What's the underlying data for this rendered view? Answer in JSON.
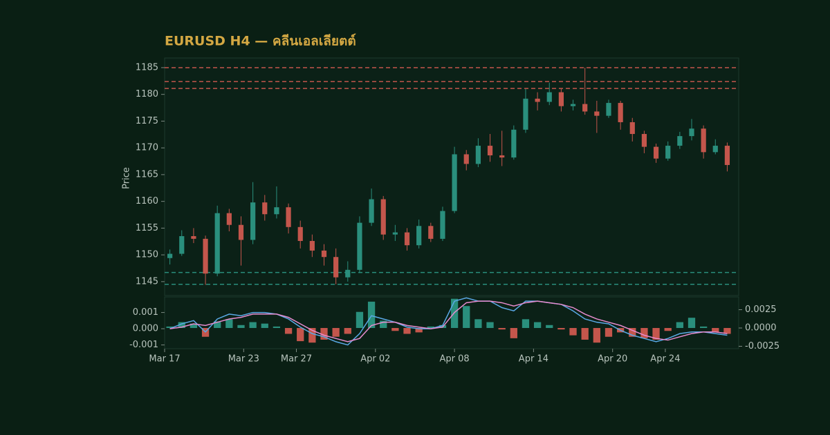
{
  "chart_data": [
    {
      "type": "candlestick",
      "title": "EURUSD H4 — คลีนเอลเลียตต์",
      "ylabel": "Price",
      "up_color": "#2a8f7d",
      "down_color": "#c4564c",
      "x": [
        0.4,
        1.3,
        2.2,
        3.1,
        4.0,
        4.9,
        5.8,
        6.7,
        7.6,
        8.5,
        9.4,
        10.3,
        11.2,
        12.1,
        13.0,
        13.9,
        14.8,
        15.7,
        16.6,
        17.5,
        18.4,
        19.3,
        20.2,
        21.1,
        22.0,
        22.9,
        23.8,
        24.7,
        25.6,
        26.5,
        27.4,
        28.3,
        29.2,
        30.1,
        31.0,
        31.9,
        32.8,
        33.7,
        34.6,
        35.5,
        36.4,
        37.3,
        38.2,
        39.1,
        40.0,
        40.9,
        41.8,
        42.7
      ],
      "open": [
        1149.4,
        1150.2,
        1153.5,
        1153.0,
        1146.5,
        1157.8,
        1155.6,
        1152.8,
        1159.8,
        1157.6,
        1158.9,
        1155.2,
        1152.6,
        1150.8,
        1149.6,
        1145.8,
        1147.2,
        1156.0,
        1160.4,
        1153.8,
        1154.2,
        1151.8,
        1155.4,
        1153.0,
        1158.2,
        1168.8,
        1167.0,
        1170.4,
        1168.6,
        1168.2,
        1173.4,
        1179.2,
        1178.6,
        1180.4,
        1177.8,
        1178.2,
        1176.8,
        1176.0,
        1178.4,
        1174.8,
        1172.6,
        1170.2,
        1168.0,
        1170.4,
        1172.2,
        1173.6,
        1169.2,
        1170.4
      ],
      "high": [
        1151.0,
        1154.6,
        1155.0,
        1153.6,
        1159.2,
        1158.6,
        1157.2,
        1163.6,
        1161.2,
        1162.8,
        1159.6,
        1156.4,
        1153.8,
        1152.0,
        1151.2,
        1148.8,
        1157.2,
        1162.4,
        1161.0,
        1155.6,
        1155.0,
        1156.6,
        1156.0,
        1159.0,
        1170.2,
        1169.6,
        1171.8,
        1172.6,
        1173.2,
        1174.2,
        1181.0,
        1180.4,
        1182.2,
        1181.0,
        1179.0,
        1185.0,
        1178.8,
        1179.0,
        1178.8,
        1175.6,
        1173.2,
        1170.8,
        1171.2,
        1173.0,
        1175.4,
        1174.2,
        1171.6,
        1171.0
      ],
      "low": [
        1148.2,
        1149.8,
        1152.2,
        1144.4,
        1146.0,
        1154.4,
        1148.0,
        1152.0,
        1156.4,
        1156.8,
        1154.0,
        1151.2,
        1149.6,
        1148.0,
        1144.5,
        1145.0,
        1146.6,
        1155.4,
        1152.8,
        1152.6,
        1150.8,
        1151.2,
        1152.4,
        1152.6,
        1157.8,
        1165.8,
        1166.4,
        1167.4,
        1166.6,
        1167.8,
        1172.8,
        1177.0,
        1178.0,
        1176.8,
        1177.0,
        1176.2,
        1172.8,
        1175.6,
        1173.4,
        1171.2,
        1169.0,
        1167.2,
        1167.6,
        1169.8,
        1171.4,
        1168.0,
        1168.8,
        1165.6
      ],
      "close": [
        1150.2,
        1153.5,
        1153.0,
        1146.5,
        1157.8,
        1155.6,
        1152.8,
        1159.8,
        1157.6,
        1158.9,
        1155.2,
        1152.6,
        1150.8,
        1149.6,
        1145.8,
        1147.2,
        1156.0,
        1160.4,
        1153.8,
        1154.2,
        1151.8,
        1155.4,
        1153.0,
        1158.2,
        1168.8,
        1167.0,
        1170.4,
        1168.6,
        1168.2,
        1173.4,
        1179.2,
        1178.6,
        1180.4,
        1177.8,
        1178.2,
        1176.8,
        1176.0,
        1178.4,
        1174.8,
        1172.6,
        1170.2,
        1168.0,
        1170.4,
        1172.2,
        1173.6,
        1169.2,
        1170.4,
        1166.8
      ],
      "levels": [
        {
          "value": 1185.0,
          "color": "#c4564c"
        },
        {
          "value": 1182.4,
          "color": "#c4564c"
        },
        {
          "value": 1181.1,
          "color": "#c4564c"
        },
        {
          "value": 1146.7,
          "color": "#2a8f7d"
        },
        {
          "value": 1144.5,
          "color": "#2a8f7d"
        }
      ],
      "xlim": [
        0,
        43.57
      ],
      "ylim": [
        1142.4,
        1186.8
      ],
      "yticks": [
        1145,
        1150,
        1155,
        1160,
        1165,
        1170,
        1175,
        1180,
        1185
      ]
    },
    {
      "type": "line",
      "x": [
        0.4,
        1.3,
        2.2,
        3.1,
        4.0,
        4.9,
        5.8,
        6.7,
        7.6,
        8.5,
        9.4,
        10.3,
        11.2,
        12.1,
        13.0,
        13.9,
        14.8,
        15.7,
        16.6,
        17.5,
        18.4,
        19.3,
        20.2,
        21.1,
        22.0,
        22.9,
        23.8,
        24.7,
        25.6,
        26.5,
        27.4,
        28.3,
        29.2,
        30.1,
        31.0,
        31.9,
        32.8,
        33.7,
        34.6,
        35.5,
        36.4,
        37.3,
        38.2,
        39.1,
        40.0,
        40.9,
        41.8,
        42.7
      ],
      "series": [
        {
          "color": "#5aa9e6",
          "values": [
            0,
            0.0003,
            0.0005,
            -0.0002,
            0.0006,
            0.0009,
            0.0008,
            0.001,
            0.001,
            0.0009,
            0.0006,
            0.0001,
            -0.0003,
            -0.0005,
            -0.0008,
            -0.001,
            -0.0003,
            0.0008,
            0.0006,
            0.0004,
            0.0001,
            0,
            0,
            0.0002,
            0.0017,
            0.0019,
            0.0017,
            0.0017,
            0.0013,
            0.0011,
            0.0017,
            0.0017,
            0.0016,
            0.0015,
            0.0011,
            0.0006,
            0.0004,
            0.0003,
            -0.0001,
            -0.0004,
            -0.0006,
            -0.0008,
            -0.0006,
            -0.0003,
            -0.0002,
            -0.0002,
            -0.0003,
            -0.0004
          ]
        },
        {
          "color": "#e88ccf",
          "values": [
            0,
            0.0001,
            0.0003,
            0.0002,
            0.0004,
            0.0006,
            0.0007,
            0.0009,
            0.0009,
            0.0009,
            0.0007,
            0.0003,
            -0.0001,
            -0.0004,
            -0.0006,
            -0.0008,
            -0.0006,
            0.0002,
            0.0004,
            0.0004,
            0.0002,
            0.0001,
            0,
            0.0001,
            0.001,
            0.0016,
            0.0017,
            0.0017,
            0.0016,
            0.0014,
            0.0016,
            0.0017,
            0.0016,
            0.0015,
            0.0013,
            0.0009,
            0.0006,
            0.0004,
            0.0002,
            -0.0001,
            -0.0004,
            -0.0006,
            -0.0007,
            -0.0005,
            -0.0003,
            -0.0002,
            -0.0002,
            -0.0003
          ]
        },
        {
          "type": "bar",
          "axis": "y2",
          "colors": [
            "#2a8f7d",
            "#c4564c"
          ],
          "values": [
            0.0002,
            0.0008,
            0.0006,
            -0.0012,
            0.0009,
            0.0012,
            0.0004,
            0.0008,
            0.0006,
            0.0002,
            -0.0008,
            -0.0018,
            -0.002,
            -0.0016,
            -0.0012,
            -0.0008,
            0.0022,
            0.0036,
            0.001,
            -0.0004,
            -0.0008,
            -0.0006,
            0.0002,
            0.0004,
            0.004,
            0.003,
            0.0012,
            0.0008,
            -0.0002,
            -0.0014,
            0.0012,
            0.0008,
            0.0004,
            -0.0002,
            -0.001,
            -0.0016,
            -0.002,
            -0.0012,
            -0.0006,
            -0.0012,
            -0.0014,
            -0.0016,
            -0.0004,
            0.0008,
            0.0014,
            0.0002,
            -0.0006,
            -0.0008
          ]
        }
      ],
      "xlim": [
        0,
        43.57
      ],
      "xticks": [
        {
          "value": 0,
          "label": "Mar 17"
        },
        {
          "value": 6,
          "label": "Mar 23"
        },
        {
          "value": 10,
          "label": "Mar 27"
        },
        {
          "value": 16,
          "label": "Apr 02"
        },
        {
          "value": 22,
          "label": "Apr 08"
        },
        {
          "value": 28,
          "label": "Apr 14"
        },
        {
          "value": 34,
          "label": "Apr 20"
        },
        {
          "value": 38,
          "label": "Apr 24"
        }
      ],
      "ylim": [
        -0.00123,
        0.00196
      ],
      "yticks": [
        -0.001,
        {
          "value": 0,
          "label": "0.000"
        },
        0.001
      ],
      "y2lim": [
        -0.00283,
        0.00425
      ],
      "y2ticks": [
        -0.0025,
        {
          "value": 0,
          "label": "0.0000"
        },
        0.0025
      ]
    }
  ]
}
